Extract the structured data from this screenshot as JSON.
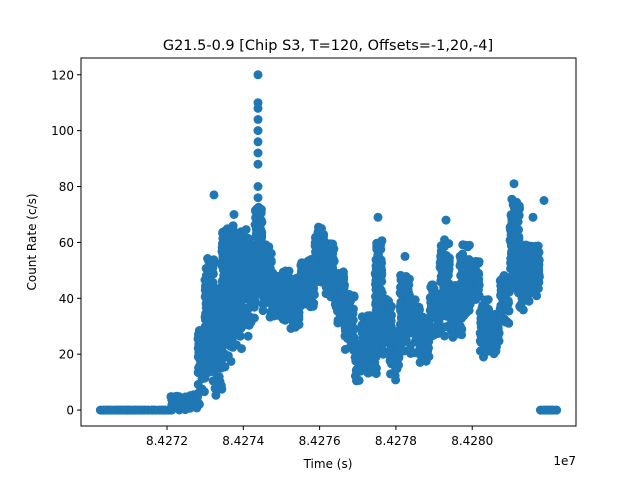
{
  "chart_data": {
    "type": "scatter",
    "title": "G21.5-0.9 [Chip S3, T=120, Offsets=-1,20,-4]",
    "xlabel": "Time (s)",
    "ylabel": "Count Rate (c/s)",
    "x_offset_label": "1e7",
    "xlim": [
      84269746,
      84282720
    ],
    "ylim": [
      -5.7,
      126
    ],
    "xticks": [
      84272000,
      84274000,
      84276000,
      84278000,
      84280000
    ],
    "xtick_labels": [
      "8.4272",
      "8.4274",
      "8.4276",
      "8.4278",
      "8.4280"
    ],
    "yticks": [
      0,
      20,
      40,
      60,
      80,
      100,
      120
    ],
    "ytick_labels": [
      "0",
      "20",
      "40",
      "60",
      "80",
      "100",
      "120"
    ],
    "grid": false,
    "marker_color": "#1f77b4",
    "bands_note_columns": [
      "t_start",
      "t_end",
      "rate_min",
      "rate_max"
    ],
    "bands": [
      [
        84270244,
        84272079,
        0,
        0.3
      ],
      [
        84272079,
        84272603,
        0,
        5
      ],
      [
        84272603,
        84272813,
        0,
        6
      ],
      [
        84272813,
        84272996,
        5,
        30
      ],
      [
        84272996,
        84273258,
        10,
        55
      ],
      [
        84273258,
        84273442,
        4,
        45
      ],
      [
        84273442,
        84273704,
        15,
        65
      ],
      [
        84273704,
        84273913,
        20,
        66
      ],
      [
        84273913,
        84274175,
        25,
        65
      ],
      [
        84274175,
        84274306,
        30,
        60
      ],
      [
        84274306,
        84274490,
        35,
        75
      ],
      [
        84274490,
        84274700,
        35,
        60
      ],
      [
        84274700,
        84275224,
        30,
        50
      ],
      [
        84275224,
        84275486,
        28,
        48
      ],
      [
        84275486,
        84275879,
        35,
        55
      ],
      [
        84275879,
        84276141,
        45,
        66
      ],
      [
        84276141,
        84276403,
        40,
        60
      ],
      [
        84276403,
        84276665,
        30,
        50
      ],
      [
        84276665,
        84276927,
        20,
        42
      ],
      [
        84276927,
        84277110,
        9,
        25
      ],
      [
        84277110,
        84277457,
        12,
        35
      ],
      [
        84277457,
        84277635,
        20,
        62
      ],
      [
        84277635,
        84277845,
        20,
        40
      ],
      [
        84277845,
        84278107,
        10,
        30
      ],
      [
        84278107,
        84278369,
        20,
        50
      ],
      [
        84278369,
        84278631,
        20,
        40
      ],
      [
        84278631,
        84278893,
        15,
        35
      ],
      [
        84278893,
        84279155,
        25,
        45
      ],
      [
        84279155,
        84279417,
        25,
        62
      ],
      [
        84279417,
        84279680,
        25,
        45
      ],
      [
        84279680,
        84279942,
        30,
        60
      ],
      [
        84279942,
        84280204,
        35,
        55
      ],
      [
        84280204,
        84280466,
        17,
        40
      ],
      [
        84280466,
        84280728,
        20,
        35
      ],
      [
        84280728,
        84280990,
        30,
        50
      ],
      [
        84280990,
        84281200,
        40,
        78
      ],
      [
        84281200,
        84281514,
        35,
        60
      ],
      [
        84281514,
        84281776,
        40,
        60
      ],
      [
        84281776,
        84282222,
        0,
        0.3
      ]
    ],
    "outliers": [
      [
        84274385,
        120
      ],
      [
        84274385,
        110
      ],
      [
        84274385,
        108
      ],
      [
        84274385,
        104
      ],
      [
        84274385,
        100
      ],
      [
        84274385,
        96
      ],
      [
        84274385,
        92
      ],
      [
        84274385,
        88
      ],
      [
        84274385,
        80
      ],
      [
        84274385,
        76
      ],
      [
        84273232,
        77
      ],
      [
        84273756,
        70
      ],
      [
        84277530,
        69
      ],
      [
        84278238,
        55
      ],
      [
        84279313,
        68
      ],
      [
        84281095,
        81
      ],
      [
        84281593,
        69
      ],
      [
        84281881,
        75
      ]
    ]
  }
}
